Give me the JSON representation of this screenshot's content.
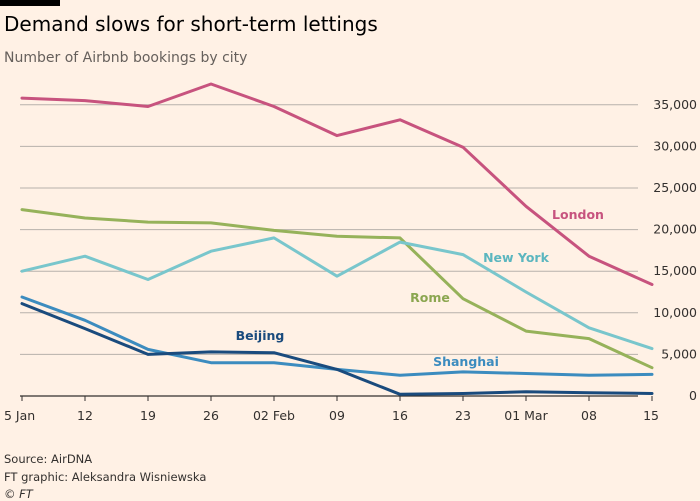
{
  "title": "Demand slows for short-term lettings",
  "subtitle": "Number of Airbnb bookings by city",
  "footer": {
    "source": "Source: AirDNA",
    "credit": "FT graphic: Aleksandra Wisniewska",
    "copyright": "© FT"
  },
  "chart_data": {
    "type": "line",
    "title": "Demand slows for short-term lettings",
    "subtitle": "Number of Airbnb bookings by city",
    "xlabel": "",
    "ylabel": "",
    "categories": [
      "5 Jan",
      "12",
      "19",
      "26",
      "02 Feb",
      "09",
      "16",
      "23",
      "01 Mar",
      "08",
      "15"
    ],
    "ylim": [
      0,
      37000
    ],
    "yticks": [
      0,
      5000,
      10000,
      15000,
      20000,
      25000,
      30000,
      35000
    ],
    "ytick_labels": [
      "0",
      "5,000",
      "10,000",
      "15,000",
      "20,000",
      "25,000",
      "30,000",
      "35,000"
    ],
    "grid": true,
    "series": [
      {
        "name": "London",
        "color": "#c7537e",
        "values": [
          35800,
          35500,
          34800,
          37500,
          34800,
          31300,
          33200,
          29900,
          22800,
          16800,
          13400
        ]
      },
      {
        "name": "New York",
        "color": "#79c6cc",
        "values": [
          15000,
          16800,
          14000,
          17400,
          19000,
          14400,
          18500,
          17000,
          12500,
          8200,
          5700
        ]
      },
      {
        "name": "Rome",
        "color": "#96b25a",
        "values": [
          22400,
          21400,
          20900,
          20800,
          19900,
          19200,
          19000,
          11700,
          7800,
          6900,
          3400
        ]
      },
      {
        "name": "Beijing",
        "color": "#1a4b7d",
        "values": [
          11100,
          8100,
          5000,
          5300,
          5200,
          3200,
          200,
          300,
          500,
          400,
          300
        ]
      },
      {
        "name": "Shanghai",
        "color": "#3c8cbf",
        "values": [
          11900,
          9100,
          5600,
          4000,
          4000,
          3200,
          2500,
          2900,
          2700,
          2500,
          2600
        ]
      }
    ],
    "labels": [
      "London",
      "New York",
      "Rome",
      "Beijing",
      "Shanghai"
    ]
  }
}
